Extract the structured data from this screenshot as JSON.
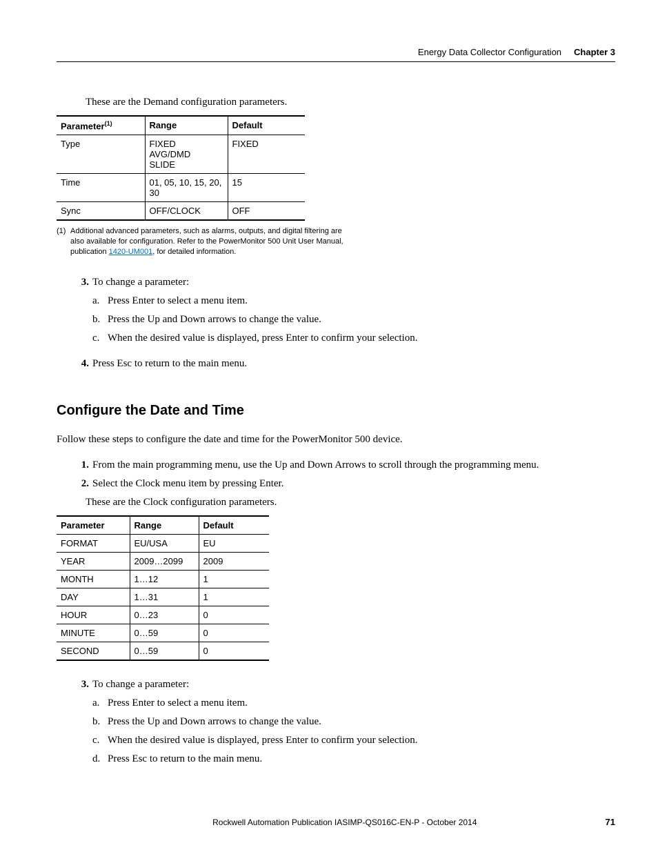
{
  "header": {
    "section": "Energy Data Collector Configuration",
    "chapter": "Chapter 3"
  },
  "intro1": "These are the Demand configuration parameters.",
  "table1": {
    "columns": [
      "Parameter",
      "Range",
      "Default"
    ],
    "superscript": "(1)",
    "rows": [
      [
        "Type",
        "FIXED\nAVG/DMD\nSLIDE",
        "FIXED"
      ],
      [
        "Time",
        "01, 05, 10, 15, 20, 30",
        "15"
      ],
      [
        "Sync",
        "OFF/CLOCK",
        "OFF"
      ]
    ]
  },
  "footnote": {
    "num": "(1)",
    "text_a": "Additional advanced parameters, such as alarms, outputs, and digital filtering are also available for configuration. Refer to the PowerMonitor 500 Unit User Manual, publication ",
    "link": "1420-UM001",
    "text_b": ", for detailed information."
  },
  "steps1": [
    {
      "n": "3.",
      "t": "To change a parameter:",
      "sub": [
        {
          "n": "a.",
          "t": "Press Enter to select a menu item."
        },
        {
          "n": "b.",
          "t": "Press the Up and Down arrows to change the value."
        },
        {
          "n": "c.",
          "t": "When the desired value is displayed, press Enter to confirm your selection."
        }
      ]
    },
    {
      "n": "4.",
      "t": "Press Esc to return to the main menu."
    }
  ],
  "section_heading": "Configure the Date and Time",
  "body1": "Follow these steps to configure the date and time for the PowerMonitor 500 device.",
  "steps2a": [
    {
      "n": "1.",
      "t": "From the main programming menu, use the Up and Down Arrows to scroll through the programming menu."
    },
    {
      "n": "2.",
      "t": "Select the Clock menu item by pressing Enter."
    }
  ],
  "intro2": "These are the Clock configuration parameters.",
  "table2": {
    "columns": [
      "Parameter",
      "Range",
      "Default"
    ],
    "rows": [
      [
        "FORMAT",
        "EU/USA",
        "EU"
      ],
      [
        "YEAR",
        "2009…2099",
        "2009"
      ],
      [
        "MONTH",
        "1…12",
        "1"
      ],
      [
        "DAY",
        "1…31",
        "1"
      ],
      [
        "HOUR",
        "0…23",
        "0"
      ],
      [
        "MINUTE",
        "0…59",
        "0"
      ],
      [
        "SECOND",
        "0…59",
        "0"
      ]
    ]
  },
  "steps2b": [
    {
      "n": "3.",
      "t": "To change a parameter:",
      "sub": [
        {
          "n": "a.",
          "t": "Press Enter to select a menu item."
        },
        {
          "n": "b.",
          "t": "Press the Up and Down arrows to change the value."
        },
        {
          "n": "c.",
          "t": "When the desired value is displayed, press Enter to confirm your selection."
        },
        {
          "n": "d.",
          "t": "Press Esc to return to the main menu."
        }
      ]
    }
  ],
  "footer": {
    "pub": "Rockwell Automation Publication IASIMP-QS016C-EN-P - October 2014",
    "page": "71"
  }
}
